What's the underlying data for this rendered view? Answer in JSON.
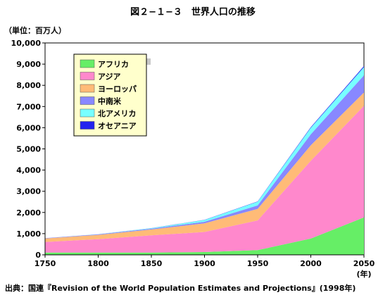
{
  "figure": {
    "title": "図２−１−３　世界人口の推移",
    "source_note": "出典：国連『Revision of the World Population Estimates and Projections』(1998年)"
  },
  "chart_data": {
    "type": "area",
    "stacked": true,
    "title": "図２−１−３　世界人口の推移",
    "ylabel": "（単位：百万人）",
    "xlabel": "(年)",
    "x": [
      1750,
      1800,
      1850,
      1900,
      1950,
      2000,
      2050
    ],
    "xlim": [
      1750,
      2050
    ],
    "ylim": [
      0,
      10000
    ],
    "x_ticks": [
      "1750",
      "1800",
      "1850",
      "1900",
      "1950",
      "2000",
      "2050"
    ],
    "y_ticks": [
      "0",
      "1,000",
      "2,000",
      "3,000",
      "4,000",
      "5,000",
      "6,000",
      "7,000",
      "8,000",
      "9,000",
      "10,000"
    ],
    "y_tick_values": [
      0,
      1000,
      2000,
      3000,
      4000,
      5000,
      6000,
      7000,
      8000,
      9000,
      10000
    ],
    "grid": false,
    "legend_position": "top-left",
    "series": [
      {
        "name": "アフリカ",
        "color": "#66ee66",
        "values": [
          106,
          107,
          111,
          133,
          221,
          767,
          1766
        ]
      },
      {
        "name": "アジア",
        "color": "#ff88cc",
        "values": [
          502,
          635,
          809,
          947,
          1402,
          3672,
          5268
        ]
      },
      {
        "name": "ヨーロッパ",
        "color": "#ffbb77",
        "values": [
          163,
          203,
          276,
          408,
          547,
          729,
          628
        ]
      },
      {
        "name": "中南米",
        "color": "#8888ff",
        "values": [
          16,
          24,
          38,
          74,
          167,
          519,
          809
        ]
      },
      {
        "name": "北アメリカ",
        "color": "#77ffff",
        "values": [
          2,
          7,
          26,
          82,
          172,
          310,
          392
        ]
      },
      {
        "name": "オセアニア",
        "color": "#2222ee",
        "values": [
          2,
          2,
          2,
          6,
          13,
          30,
          46
        ]
      }
    ]
  }
}
